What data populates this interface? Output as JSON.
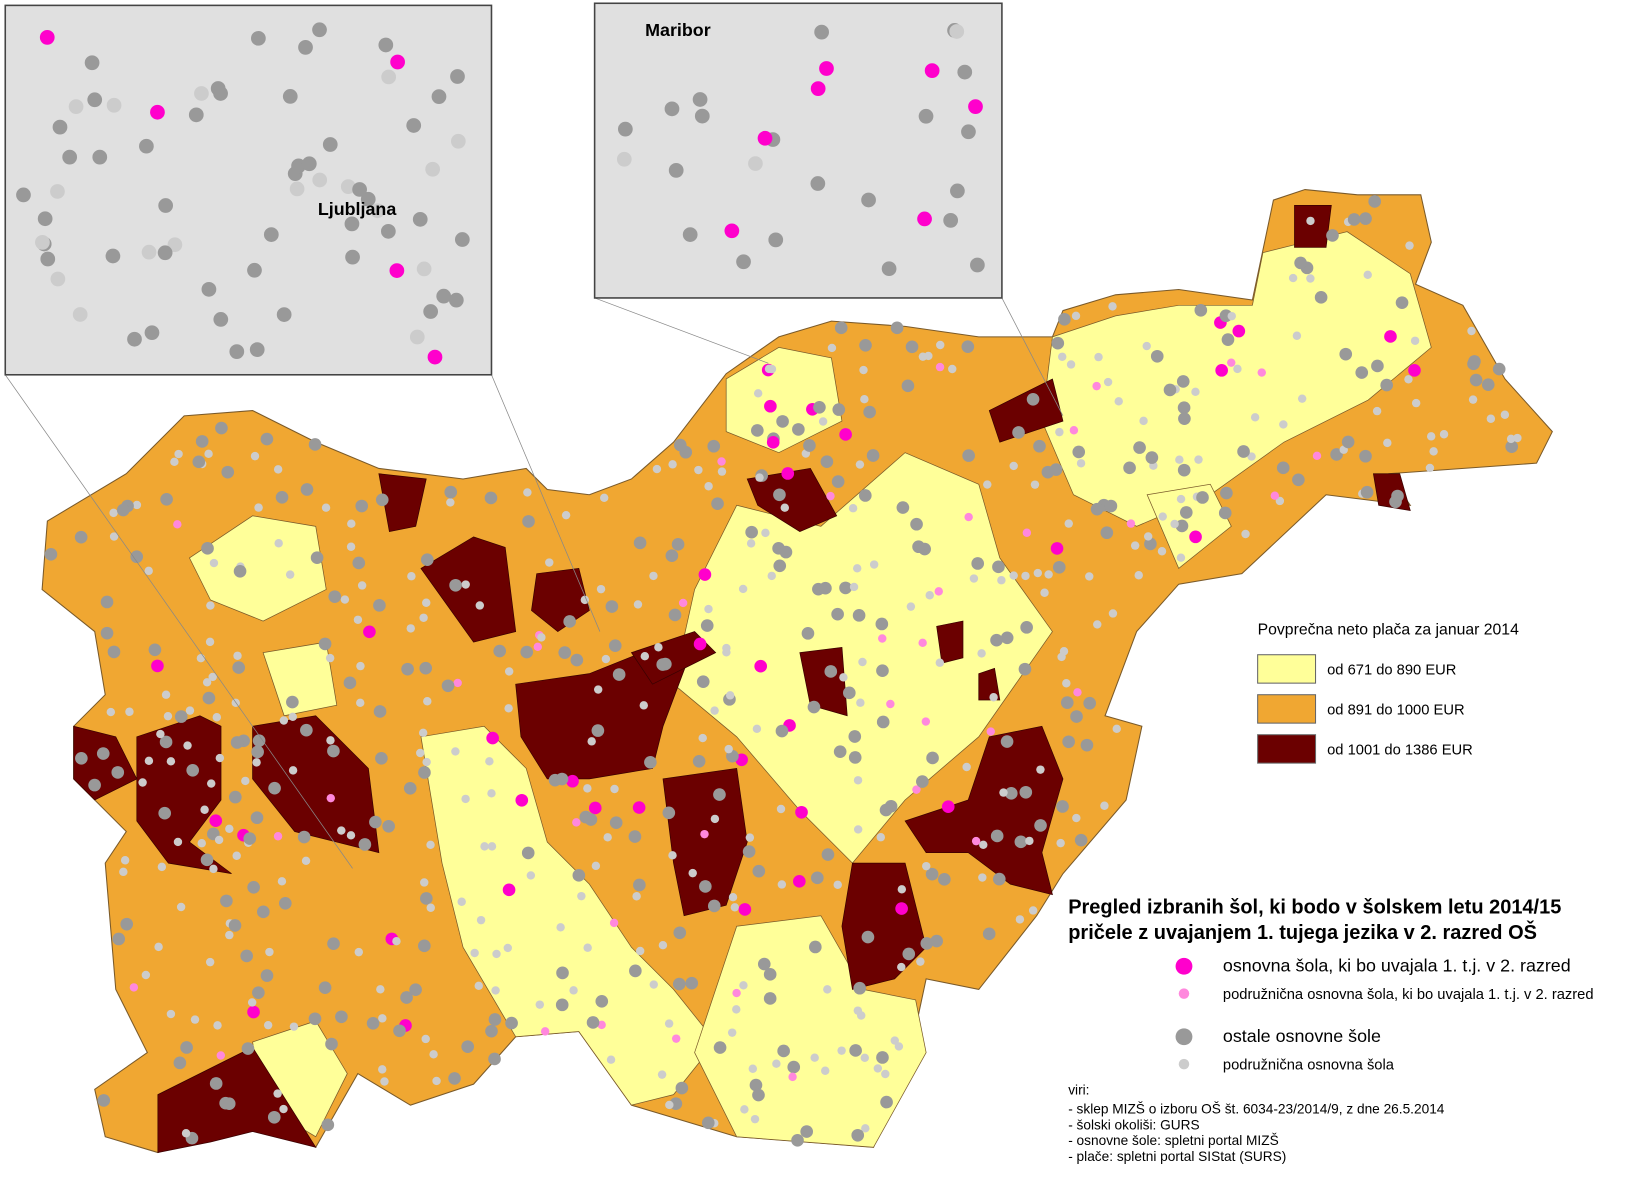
{
  "insets": [
    {
      "label": "Ljubljana"
    },
    {
      "label": "Maribor"
    }
  ],
  "salary_legend": {
    "title": "Povprečna neto plača za januar 2014",
    "classes": [
      {
        "label": "od 671 do 890 EUR",
        "color": "#ffff99"
      },
      {
        "label": "od 891 do 1000 EUR",
        "color": "#f0a732"
      },
      {
        "label": "od 1001 do 1386 EUR",
        "color": "#6b0000"
      }
    ]
  },
  "title": [
    "Pregled izbranih šol, ki bodo v šolskem letu 2014/15",
    "pričele z uvajanjem 1. tujega jezika v 2. razred OŠ"
  ],
  "symbols": [
    {
      "label": "osnovna šola, ki bo uvajala 1. t.j. v 2. razred",
      "color": "#ff00cc"
    },
    {
      "label": "podružnična osnovna šola, ki bo uvajala 1. t.j. v 2. razred",
      "color": "#ff88dd"
    },
    {
      "label": "ostale osnovne šole",
      "color": "#999999"
    },
    {
      "label": "podružnična osnovna šola",
      "color": "#cccccc"
    }
  ],
  "sources": {
    "heading": "viri:",
    "items": [
      "- sklep MIZŠ o izboru OŠ št. 6034-23/2014/9, z dne 26.5.2014",
      "- šolski okoliši: GURS",
      "- osnovne šole: spletni portal MIZŠ",
      "- plače: spletni portal SIStat (SURS)"
    ]
  }
}
